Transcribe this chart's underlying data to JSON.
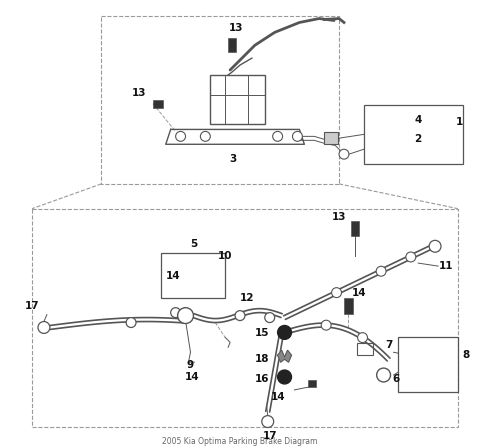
{
  "title": "2005 Kia Optima Parking Brake Diagram",
  "bg_color": "#ffffff",
  "line_color": "#555555",
  "dashed_color": "#999999",
  "text_color": "#111111",
  "fig_width": 4.8,
  "fig_height": 4.47
}
